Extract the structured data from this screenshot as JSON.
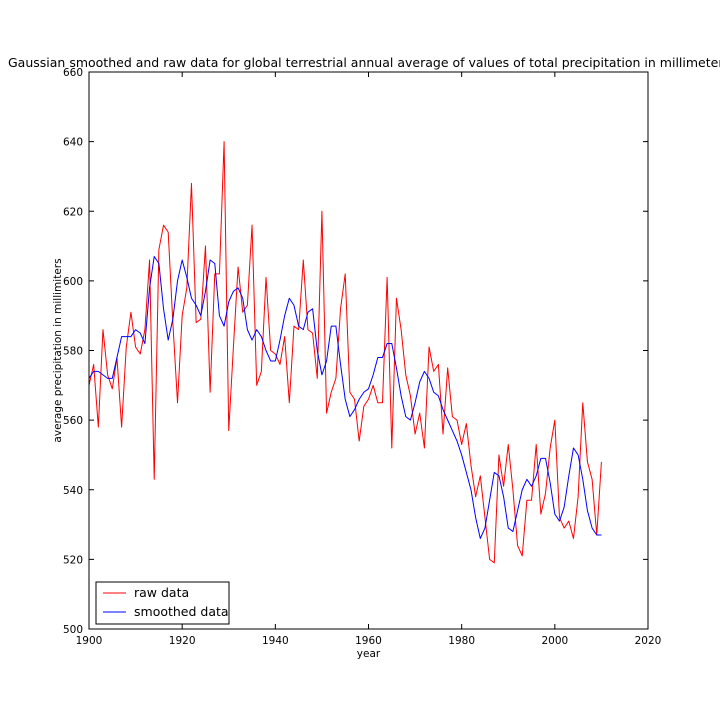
{
  "chart_data": {
    "type": "line",
    "title": "Gaussian smoothed and raw data for global terrestrial annual average of values of total precipitation in millimeters",
    "xlabel": "year",
    "ylabel": "average precipitation in millimiters",
    "xlim": [
      1900,
      2020
    ],
    "ylim": [
      500,
      660
    ],
    "x_ticks": [
      "1900",
      "1920",
      "1940",
      "1960",
      "1980",
      "2000",
      "2020"
    ],
    "y_ticks": [
      "500",
      "520",
      "540",
      "560",
      "580",
      "600",
      "620",
      "640",
      "660"
    ],
    "legend_position": "lower-left",
    "grid": false,
    "series": [
      {
        "name": "raw data",
        "color": "#ff0000",
        "x": [
          1900,
          1901,
          1902,
          1903,
          1904,
          1905,
          1906,
          1907,
          1908,
          1909,
          1910,
          1911,
          1912,
          1913,
          1914,
          1915,
          1916,
          1917,
          1918,
          1919,
          1920,
          1921,
          1922,
          1923,
          1924,
          1925,
          1926,
          1927,
          1928,
          1929,
          1930,
          1931,
          1932,
          1933,
          1934,
          1935,
          1936,
          1937,
          1938,
          1939,
          1940,
          1941,
          1942,
          1943,
          1944,
          1945,
          1946,
          1947,
          1948,
          1949,
          1950,
          1951,
          1952,
          1953,
          1954,
          1955,
          1956,
          1957,
          1958,
          1959,
          1960,
          1961,
          1962,
          1963,
          1964,
          1965,
          1966,
          1967,
          1968,
          1969,
          1970,
          1971,
          1972,
          1973,
          1974,
          1975,
          1976,
          1977,
          1978,
          1979,
          1980,
          1981,
          1982,
          1983,
          1984,
          1985,
          1986,
          1987,
          1988,
          1989,
          1990,
          1991,
          1992,
          1993,
          1994,
          1995,
          1996,
          1997,
          1998,
          1999,
          2000,
          2001,
          2002,
          2003,
          2004,
          2005,
          2006,
          2007,
          2008,
          2009,
          2010
        ],
        "values": [
          570,
          576,
          558,
          586,
          573,
          569,
          578,
          558,
          581,
          591,
          581,
          579,
          586,
          606,
          543,
          609,
          616,
          614,
          588,
          565,
          590,
          598,
          628,
          588,
          589,
          610,
          568,
          602,
          602,
          640,
          557,
          581,
          604,
          591,
          593,
          616,
          570,
          574,
          601,
          580,
          579,
          576,
          584,
          565,
          587,
          586,
          606,
          586,
          585,
          572,
          620,
          562,
          568,
          572,
          592,
          602,
          568,
          566,
          554,
          564,
          566,
          570,
          565,
          565,
          601,
          552,
          595,
          586,
          573,
          567,
          556,
          562,
          552,
          581,
          574,
          576,
          556,
          575,
          561,
          560,
          553,
          559,
          547,
          538,
          544,
          532,
          520,
          519,
          550,
          541,
          553,
          540,
          524,
          521,
          537,
          537,
          553,
          533,
          539,
          552,
          560,
          532,
          529,
          531,
          526,
          538,
          565,
          548,
          543,
          527,
          548
        ]
      },
      {
        "name": "smoothed data",
        "color": "#0000ff",
        "x": [
          1900,
          1901,
          1902,
          1903,
          1904,
          1905,
          1906,
          1907,
          1908,
          1909,
          1910,
          1911,
          1912,
          1913,
          1914,
          1915,
          1916,
          1917,
          1918,
          1919,
          1920,
          1921,
          1922,
          1923,
          1924,
          1925,
          1926,
          1927,
          1928,
          1929,
          1930,
          1931,
          1932,
          1933,
          1934,
          1935,
          1936,
          1937,
          1938,
          1939,
          1940,
          1941,
          1942,
          1943,
          1944,
          1945,
          1946,
          1947,
          1948,
          1949,
          1950,
          1951,
          1952,
          1953,
          1954,
          1955,
          1956,
          1957,
          1958,
          1959,
          1960,
          1961,
          1962,
          1963,
          1964,
          1965,
          1966,
          1967,
          1968,
          1969,
          1970,
          1971,
          1972,
          1973,
          1974,
          1975,
          1976,
          1977,
          1978,
          1979,
          1980,
          1981,
          1982,
          1983,
          1984,
          1985,
          1986,
          1987,
          1988,
          1989,
          1990,
          1991,
          1992,
          1993,
          1994,
          1995,
          1996,
          1997,
          1998,
          1999,
          2000,
          2001,
          2002,
          2003,
          2004,
          2005,
          2006,
          2007,
          2008,
          2009,
          2010
        ],
        "values": [
          572,
          574,
          574,
          573,
          572,
          572,
          578,
          584,
          584,
          584,
          586,
          585,
          582,
          598,
          607,
          605,
          592,
          583,
          589,
          600,
          606,
          601,
          595,
          593,
          590,
          597,
          606,
          605,
          590,
          587,
          594,
          597,
          598,
          595,
          586,
          583,
          586,
          584,
          580,
          577,
          577,
          583,
          590,
          595,
          593,
          587,
          586,
          591,
          592,
          580,
          573,
          577,
          587,
          587,
          576,
          566,
          561,
          563,
          566,
          568,
          569,
          573,
          578,
          578,
          582,
          582,
          575,
          567,
          561,
          560,
          565,
          571,
          574,
          572,
          568,
          567,
          563,
          560,
          557,
          554,
          550,
          545,
          540,
          532,
          526,
          529,
          537,
          545,
          544,
          538,
          529,
          528,
          534,
          540,
          543,
          541,
          544,
          549,
          549,
          542,
          533,
          531,
          535,
          544,
          552,
          550,
          543,
          534,
          529,
          527,
          527
        ]
      }
    ]
  }
}
